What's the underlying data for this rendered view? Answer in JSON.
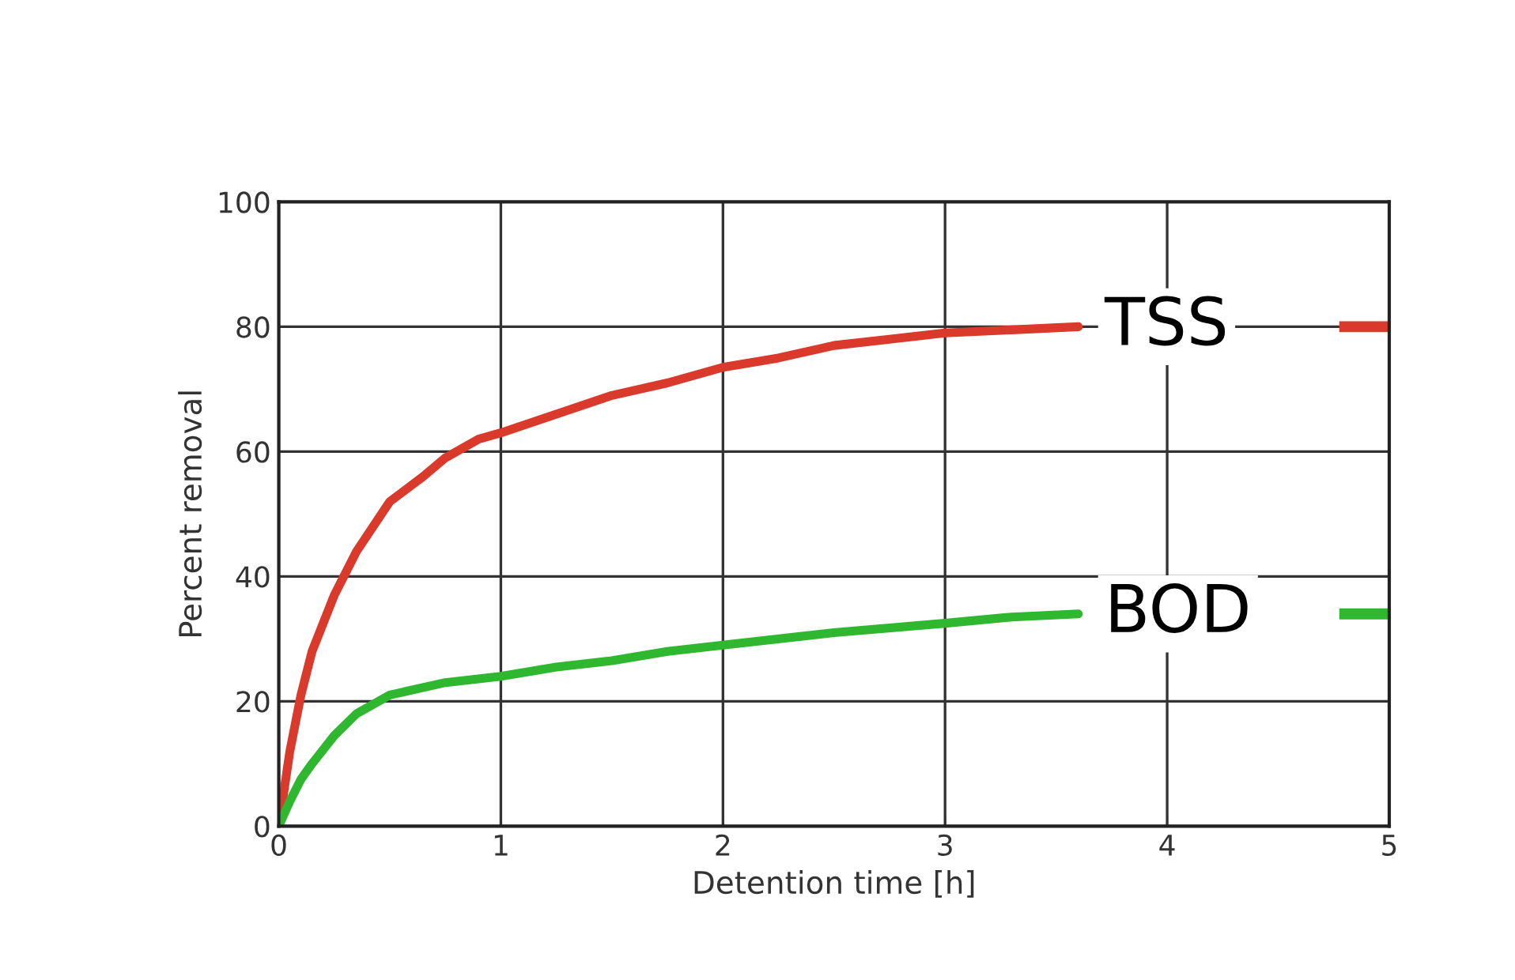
{
  "chart_data": {
    "type": "line",
    "xlabel": "Detention time [h]",
    "ylabel": "Percent removal",
    "xlim": [
      0,
      5
    ],
    "ylim": [
      0,
      100
    ],
    "xticks": [
      0,
      1,
      2,
      3,
      4,
      5
    ],
    "yticks": [
      0,
      20,
      40,
      60,
      80,
      100
    ],
    "grid": true,
    "legend": "right",
    "marker": "none",
    "line_style": "solid",
    "series": [
      {
        "name": "TSS",
        "color": "#d93a2b",
        "x": [
          0,
          0.05,
          0.1,
          0.15,
          0.25,
          0.35,
          0.5,
          0.65,
          0.75,
          0.9,
          1,
          1.25,
          1.5,
          1.75,
          2,
          2.25,
          2.5,
          2.75,
          3,
          3.3,
          3.6
        ],
        "values": [
          0,
          12,
          21,
          28,
          37,
          44,
          52,
          56,
          59,
          62,
          63,
          66,
          69,
          71,
          73.5,
          75,
          77,
          78,
          79,
          79.5,
          80
        ]
      },
      {
        "name": "BOD",
        "color": "#2fb82f",
        "x": [
          0,
          0.05,
          0.1,
          0.15,
          0.25,
          0.35,
          0.5,
          0.75,
          1,
          1.25,
          1.5,
          1.75,
          2,
          2.5,
          3,
          3.3,
          3.6
        ],
        "values": [
          0,
          4,
          7.5,
          10,
          14.5,
          18,
          21,
          23,
          24,
          25.5,
          26.5,
          28,
          29,
          31,
          32.5,
          33.5,
          34
        ]
      }
    ]
  }
}
